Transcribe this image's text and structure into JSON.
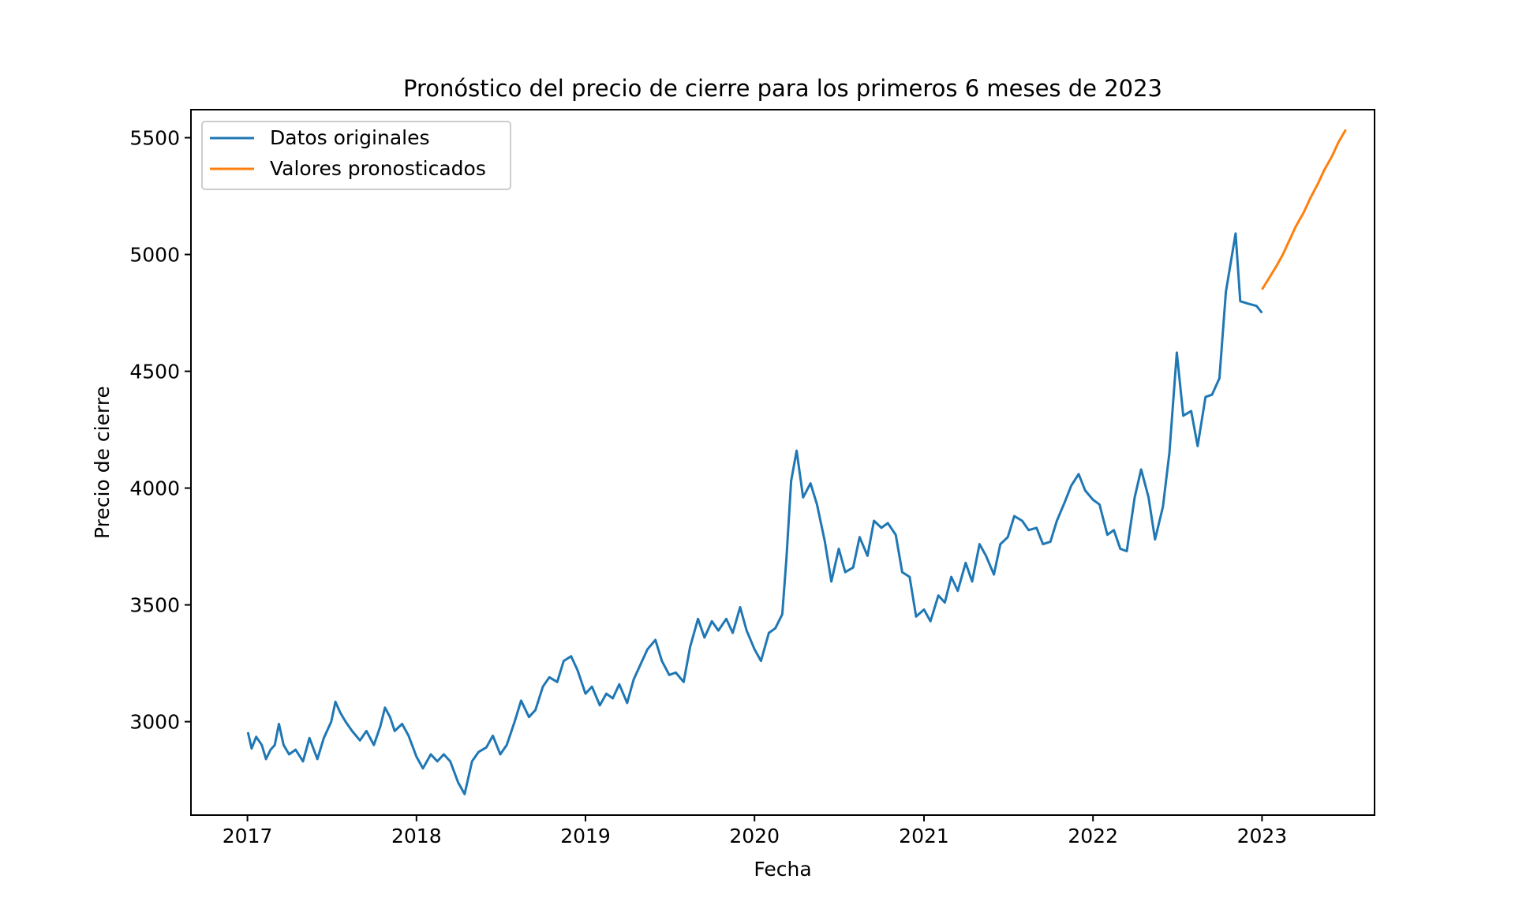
{
  "chart_data": {
    "type": "line",
    "title": "Pronóstico del precio de cierre para los primeros 6 meses de 2023",
    "xlabel": "Fecha",
    "ylabel": "Precio de cierre",
    "xlim": [
      "2016-09-01",
      "2023-09-01"
    ],
    "ylim": [
      2600,
      5620
    ],
    "xticks": [
      "2017",
      "2018",
      "2019",
      "2020",
      "2021",
      "2022",
      "2023"
    ],
    "yticks": [
      3000,
      3500,
      4000,
      4500,
      5000,
      5500
    ],
    "grid": false,
    "legend": "top-left",
    "series": [
      {
        "name": "Datos originales",
        "color": "#1f77b4",
        "points": [
          [
            "2017-01-02",
            2955
          ],
          [
            "2017-01-10",
            2885
          ],
          [
            "2017-01-20",
            2935
          ],
          [
            "2017-02-01",
            2900
          ],
          [
            "2017-02-10",
            2840
          ],
          [
            "2017-02-20",
            2880
          ],
          [
            "2017-03-01",
            2900
          ],
          [
            "2017-03-10",
            2990
          ],
          [
            "2017-03-20",
            2900
          ],
          [
            "2017-04-01",
            2860
          ],
          [
            "2017-04-15",
            2880
          ],
          [
            "2017-05-01",
            2830
          ],
          [
            "2017-05-15",
            2930
          ],
          [
            "2017-06-01",
            2840
          ],
          [
            "2017-06-15",
            2930
          ],
          [
            "2017-07-01",
            3000
          ],
          [
            "2017-07-10",
            3085
          ],
          [
            "2017-07-20",
            3040
          ],
          [
            "2017-08-01",
            3000
          ],
          [
            "2017-08-15",
            2960
          ],
          [
            "2017-09-01",
            2920
          ],
          [
            "2017-09-15",
            2960
          ],
          [
            "2017-10-01",
            2900
          ],
          [
            "2017-10-15",
            2980
          ],
          [
            "2017-10-25",
            3060
          ],
          [
            "2017-11-05",
            3020
          ],
          [
            "2017-11-15",
            2960
          ],
          [
            "2017-12-01",
            2990
          ],
          [
            "2017-12-15",
            2940
          ],
          [
            "2018-01-01",
            2850
          ],
          [
            "2018-01-15",
            2800
          ],
          [
            "2018-02-01",
            2860
          ],
          [
            "2018-02-15",
            2830
          ],
          [
            "2018-03-01",
            2860
          ],
          [
            "2018-03-15",
            2830
          ],
          [
            "2018-04-01",
            2740
          ],
          [
            "2018-04-15",
            2690
          ],
          [
            "2018-05-01",
            2830
          ],
          [
            "2018-05-15",
            2870
          ],
          [
            "2018-06-01",
            2890
          ],
          [
            "2018-06-15",
            2940
          ],
          [
            "2018-07-01",
            2860
          ],
          [
            "2018-07-15",
            2900
          ],
          [
            "2018-08-01",
            3000
          ],
          [
            "2018-08-15",
            3090
          ],
          [
            "2018-09-01",
            3020
          ],
          [
            "2018-09-15",
            3050
          ],
          [
            "2018-10-01",
            3150
          ],
          [
            "2018-10-15",
            3190
          ],
          [
            "2018-11-01",
            3170
          ],
          [
            "2018-11-15",
            3260
          ],
          [
            "2018-12-01",
            3280
          ],
          [
            "2018-12-15",
            3220
          ],
          [
            "2019-01-01",
            3120
          ],
          [
            "2019-01-15",
            3150
          ],
          [
            "2019-02-01",
            3070
          ],
          [
            "2019-02-15",
            3120
          ],
          [
            "2019-03-01",
            3100
          ],
          [
            "2019-03-15",
            3160
          ],
          [
            "2019-04-01",
            3080
          ],
          [
            "2019-04-15",
            3180
          ],
          [
            "2019-05-01",
            3250
          ],
          [
            "2019-05-15",
            3310
          ],
          [
            "2019-06-01",
            3350
          ],
          [
            "2019-06-15",
            3260
          ],
          [
            "2019-07-01",
            3200
          ],
          [
            "2019-07-15",
            3210
          ],
          [
            "2019-08-01",
            3170
          ],
          [
            "2019-08-15",
            3320
          ],
          [
            "2019-09-01",
            3440
          ],
          [
            "2019-09-15",
            3360
          ],
          [
            "2019-10-01",
            3430
          ],
          [
            "2019-10-15",
            3390
          ],
          [
            "2019-11-01",
            3440
          ],
          [
            "2019-11-15",
            3380
          ],
          [
            "2019-12-01",
            3490
          ],
          [
            "2019-12-15",
            3390
          ],
          [
            "2020-01-01",
            3310
          ],
          [
            "2020-01-15",
            3260
          ],
          [
            "2020-02-01",
            3380
          ],
          [
            "2020-02-15",
            3400
          ],
          [
            "2020-03-01",
            3460
          ],
          [
            "2020-03-10",
            3700
          ],
          [
            "2020-03-20",
            4030
          ],
          [
            "2020-04-01",
            4160
          ],
          [
            "2020-04-15",
            3960
          ],
          [
            "2020-05-01",
            4020
          ],
          [
            "2020-05-15",
            3930
          ],
          [
            "2020-06-01",
            3770
          ],
          [
            "2020-06-15",
            3600
          ],
          [
            "2020-07-01",
            3740
          ],
          [
            "2020-07-15",
            3640
          ],
          [
            "2020-08-01",
            3660
          ],
          [
            "2020-08-15",
            3790
          ],
          [
            "2020-09-01",
            3710
          ],
          [
            "2020-09-15",
            3860
          ],
          [
            "2020-10-01",
            3830
          ],
          [
            "2020-10-15",
            3850
          ],
          [
            "2020-11-01",
            3800
          ],
          [
            "2020-11-15",
            3640
          ],
          [
            "2020-12-01",
            3620
          ],
          [
            "2020-12-15",
            3450
          ],
          [
            "2021-01-01",
            3480
          ],
          [
            "2021-01-15",
            3430
          ],
          [
            "2021-02-01",
            3540
          ],
          [
            "2021-02-15",
            3510
          ],
          [
            "2021-03-01",
            3620
          ],
          [
            "2021-03-15",
            3560
          ],
          [
            "2021-04-01",
            3680
          ],
          [
            "2021-04-15",
            3600
          ],
          [
            "2021-05-01",
            3760
          ],
          [
            "2021-05-15",
            3710
          ],
          [
            "2021-06-01",
            3630
          ],
          [
            "2021-06-15",
            3760
          ],
          [
            "2021-07-01",
            3790
          ],
          [
            "2021-07-15",
            3880
          ],
          [
            "2021-08-01",
            3860
          ],
          [
            "2021-08-15",
            3820
          ],
          [
            "2021-09-01",
            3830
          ],
          [
            "2021-09-15",
            3760
          ],
          [
            "2021-10-01",
            3770
          ],
          [
            "2021-10-15",
            3860
          ],
          [
            "2021-11-01",
            3940
          ],
          [
            "2021-11-15",
            4010
          ],
          [
            "2021-12-01",
            4060
          ],
          [
            "2021-12-15",
            3990
          ],
          [
            "2022-01-01",
            3950
          ],
          [
            "2022-01-15",
            3930
          ],
          [
            "2022-02-01",
            3800
          ],
          [
            "2022-02-15",
            3820
          ],
          [
            "2022-03-01",
            3740
          ],
          [
            "2022-03-15",
            3730
          ],
          [
            "2022-04-01",
            3960
          ],
          [
            "2022-04-15",
            4080
          ],
          [
            "2022-05-01",
            3960
          ],
          [
            "2022-05-15",
            3780
          ],
          [
            "2022-06-01",
            3920
          ],
          [
            "2022-06-15",
            4150
          ],
          [
            "2022-07-01",
            4580
          ],
          [
            "2022-07-15",
            4310
          ],
          [
            "2022-08-01",
            4330
          ],
          [
            "2022-08-15",
            4180
          ],
          [
            "2022-09-01",
            4390
          ],
          [
            "2022-09-15",
            4400
          ],
          [
            "2022-10-01",
            4470
          ],
          [
            "2022-10-15",
            4840
          ],
          [
            "2022-10-25",
            4960
          ],
          [
            "2022-11-05",
            5090
          ],
          [
            "2022-11-15",
            4800
          ],
          [
            "2022-12-01",
            4790
          ],
          [
            "2022-12-20",
            4780
          ],
          [
            "2023-01-01",
            4750
          ]
        ]
      },
      {
        "name": "Valores pronosticados",
        "color": "#ff7f0e",
        "points": [
          [
            "2023-01-01",
            4850
          ],
          [
            "2023-01-15",
            4895
          ],
          [
            "2023-02-01",
            4950
          ],
          [
            "2023-02-15",
            5000
          ],
          [
            "2023-03-01",
            5060
          ],
          [
            "2023-03-15",
            5120
          ],
          [
            "2023-04-01",
            5180
          ],
          [
            "2023-04-15",
            5240
          ],
          [
            "2023-05-01",
            5300
          ],
          [
            "2023-05-15",
            5360
          ],
          [
            "2023-06-01",
            5420
          ],
          [
            "2023-06-15",
            5480
          ],
          [
            "2023-07-01",
            5535
          ]
        ]
      }
    ]
  }
}
